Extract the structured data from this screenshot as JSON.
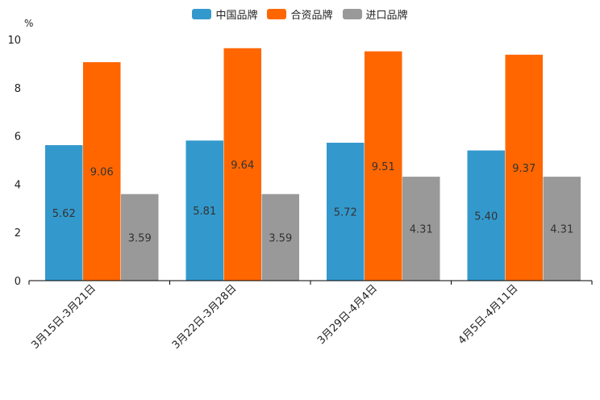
{
  "chart_data": {
    "type": "bar",
    "unit_label": "%",
    "categories": [
      "3月15日-3月21日",
      "3月22日-3月28日",
      "3月29日-4月4日",
      "4月5日-4月11日"
    ],
    "series": [
      {
        "name": "中国品牌",
        "color": "#3399cc",
        "values": [
          5.62,
          5.81,
          5.72,
          5.4
        ],
        "labels": [
          "5.62",
          "5.81",
          "5.72",
          "5.40"
        ]
      },
      {
        "name": "合资品牌",
        "color": "#ff6600",
        "values": [
          9.06,
          9.64,
          9.51,
          9.37
        ],
        "labels": [
          "9.06",
          "9.64",
          "9.51",
          "9.37"
        ]
      },
      {
        "name": "进口品牌",
        "color": "#999999",
        "values": [
          3.59,
          3.59,
          4.31,
          4.31
        ],
        "labels": [
          "3.59",
          "3.59",
          "4.31",
          "4.31"
        ]
      }
    ],
    "ylim": [
      0,
      10
    ],
    "yticks": [
      "0",
      "2",
      "4",
      "6",
      "8",
      "10"
    ],
    "legend_position": "top-center",
    "grid": false
  }
}
